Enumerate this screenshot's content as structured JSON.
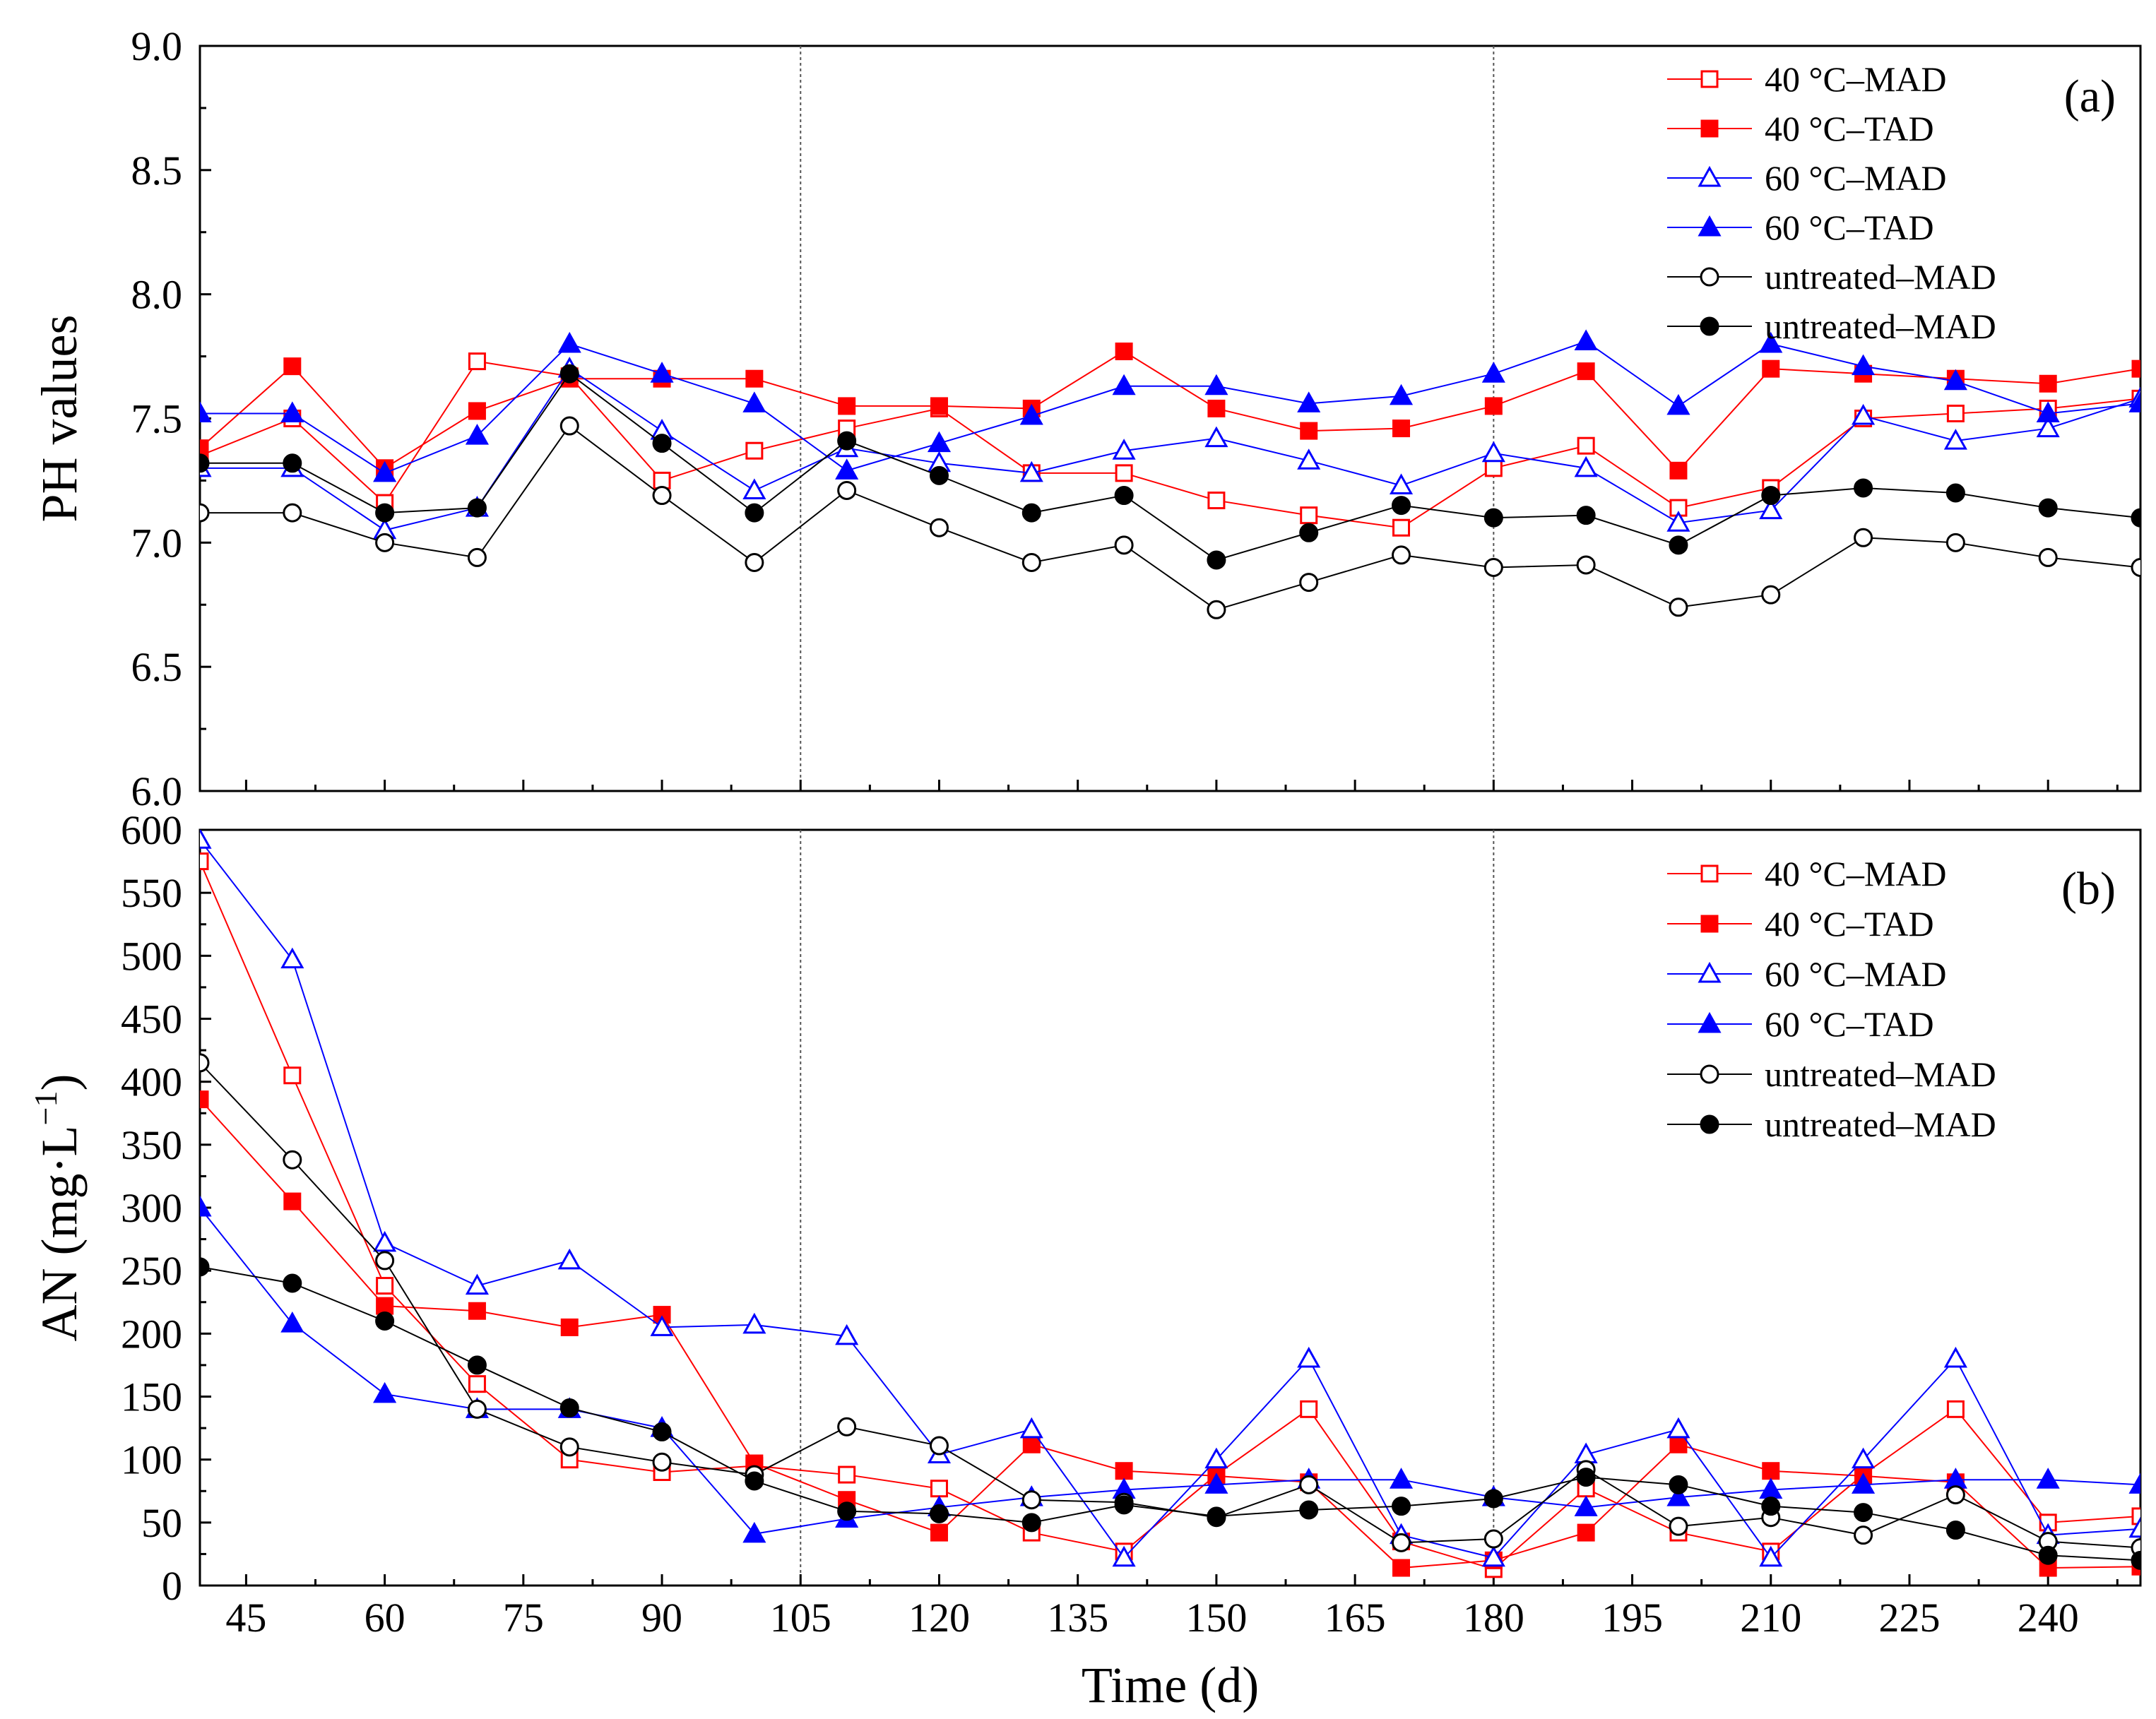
{
  "chart_data": {
    "type": "line",
    "x_label": "Time (d)",
    "x_ticks": [
      45,
      60,
      75,
      90,
      105,
      120,
      135,
      150,
      165,
      180,
      195,
      210,
      225,
      240
    ],
    "x_range": [
      40,
      250
    ],
    "x": [
      40,
      50,
      60,
      70,
      80,
      90,
      100,
      110,
      120,
      130,
      140,
      150,
      160,
      170,
      180,
      190,
      200,
      210,
      220,
      230,
      240,
      250
    ],
    "vlines": [
      105,
      180
    ],
    "colors": {
      "red": "#ff0000",
      "blue": "#0000ff",
      "black": "#000000"
    },
    "legend_labels": [
      "40 °C–MAD",
      "40 °C–TAD",
      "60 °C–MAD",
      "60 °C–TAD",
      "untreated–MAD",
      "untreated–MAD"
    ],
    "panels": [
      {
        "label": "(a)",
        "ylabel": "PH values",
        "ylim": [
          6.0,
          9.0
        ],
        "y_ticks": [
          "6.0",
          "6.5",
          "7.0",
          "7.5",
          "8.0",
          "8.5",
          "9.0"
        ],
        "series": [
          {
            "name": "40 °C–MAD",
            "color": "red",
            "marker": "square",
            "filled": false,
            "values": [
              7.35,
              7.5,
              7.16,
              7.73,
              7.67,
              7.25,
              7.37,
              7.46,
              7.54,
              7.28,
              7.28,
              7.17,
              7.11,
              7.06,
              7.3,
              7.39,
              7.14,
              7.22,
              7.5,
              7.52,
              7.54,
              7.58
            ]
          },
          {
            "name": "40 °C–TAD",
            "color": "red",
            "marker": "square",
            "filled": true,
            "values": [
              7.38,
              7.71,
              7.3,
              7.53,
              7.66,
              7.66,
              7.66,
              7.55,
              7.55,
              7.54,
              7.77,
              7.54,
              7.45,
              7.46,
              7.55,
              7.69,
              7.29,
              7.7,
              7.68,
              7.66,
              7.64,
              7.7
            ]
          },
          {
            "name": "60 °C–MAD",
            "color": "blue",
            "marker": "triangle",
            "filled": false,
            "values": [
              7.3,
              7.3,
              7.05,
              7.14,
              7.7,
              7.45,
              7.21,
              7.38,
              7.32,
              7.28,
              7.37,
              7.42,
              7.33,
              7.23,
              7.36,
              7.3,
              7.08,
              7.13,
              7.51,
              7.41,
              7.46,
              7.58
            ]
          },
          {
            "name": "60 °C–TAD",
            "color": "blue",
            "marker": "triangle",
            "filled": true,
            "values": [
              7.52,
              7.52,
              7.28,
              7.43,
              7.8,
              7.68,
              7.56,
              7.29,
              7.4,
              7.51,
              7.63,
              7.63,
              7.56,
              7.59,
              7.68,
              7.81,
              7.55,
              7.8,
              7.71,
              7.65,
              7.52,
              7.56
            ]
          },
          {
            "name": "untreated–MAD",
            "color": "black",
            "marker": "circle",
            "filled": false,
            "values": [
              7.12,
              7.12,
              7.0,
              6.94,
              7.47,
              7.19,
              6.92,
              7.21,
              7.06,
              6.92,
              6.99,
              6.73,
              6.84,
              6.95,
              6.9,
              6.91,
              6.74,
              6.79,
              7.02,
              7.0,
              6.94,
              6.9
            ]
          },
          {
            "name": "untreated–MAD",
            "color": "black",
            "marker": "circle",
            "filled": true,
            "values": [
              7.32,
              7.32,
              7.12,
              7.14,
              7.68,
              7.4,
              7.12,
              7.41,
              7.27,
              7.12,
              7.19,
              6.93,
              7.04,
              7.15,
              7.1,
              7.11,
              6.99,
              7.19,
              7.22,
              7.2,
              7.14,
              7.1
            ]
          }
        ]
      },
      {
        "label": "(b)",
        "ylabel_main": "AN (mg·L",
        "ylabel_sup": "−1",
        "ylabel_close": ")",
        "ylim": [
          0,
          600
        ],
        "y_ticks": [
          "0",
          "50",
          "100",
          "150",
          "200",
          "250",
          "300",
          "350",
          "400",
          "450",
          "500",
          "550",
          "600"
        ],
        "series": [
          {
            "name": "40 °C–MAD",
            "color": "red",
            "marker": "square",
            "filled": false,
            "values": [
              575,
              405,
              238,
              160,
              100,
              90,
              95,
              88,
              77,
              42,
              27,
              88,
              140,
              35,
              13,
              77,
              42,
              27,
              88,
              140,
              50,
              55
            ]
          },
          {
            "name": "40 °C–TAD",
            "color": "red",
            "marker": "square",
            "filled": true,
            "values": [
              386,
              305,
              222,
              218,
              205,
              215,
              97,
              68,
              42,
              112,
              91,
              87,
              82,
              14,
              20,
              42,
              112,
              91,
              87,
              82,
              14,
              15
            ]
          },
          {
            "name": "60 °C–MAD",
            "color": "blue",
            "marker": "triangle",
            "filled": false,
            "values": [
              592,
              497,
              272,
              238,
              258,
              205,
              207,
              198,
              104,
              124,
              22,
              100,
              180,
              40,
              22,
              104,
              124,
              22,
              100,
              180,
              40,
              45
            ]
          },
          {
            "name": "60 °C–TAD",
            "color": "blue",
            "marker": "triangle",
            "filled": true,
            "values": [
              300,
              208,
              152,
              140,
              140,
              125,
              41,
              53,
              62,
              70,
              76,
              80,
              84,
              84,
              70,
              62,
              70,
              76,
              80,
              84,
              84,
              80
            ]
          },
          {
            "name": "untreated–MAD",
            "color": "black",
            "marker": "circle",
            "filled": false,
            "values": [
              415,
              338,
              258,
              140,
              110,
              98,
              88,
              126,
              111,
              68,
              66,
              54,
              80,
              34,
              37,
              92,
              47,
              54,
              40,
              72,
              35,
              30
            ]
          },
          {
            "name": "untreated–MAD",
            "color": "black",
            "marker": "circle",
            "filled": true,
            "values": [
              253,
              240,
              210,
              175,
              141,
              122,
              83,
              59,
              57,
              50,
              64,
              55,
              60,
              63,
              69,
              86,
              80,
              63,
              58,
              44,
              24,
              20
            ]
          }
        ]
      }
    ]
  }
}
